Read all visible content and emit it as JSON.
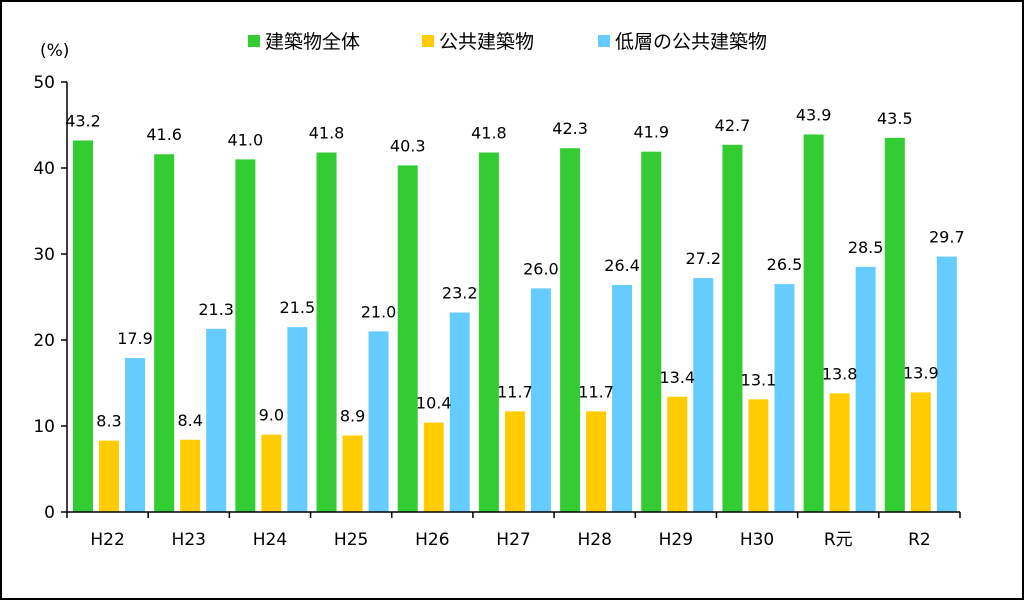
{
  "chart_data": {
    "type": "bar",
    "unit_label": "(%)",
    "categories": [
      "H22",
      "H23",
      "H24",
      "H25",
      "H26",
      "H27",
      "H28",
      "H29",
      "H30",
      "R元",
      "R2"
    ],
    "series": [
      {
        "name": "建築物全体",
        "color": "#33cc33",
        "values": [
          43.2,
          41.6,
          41.0,
          41.8,
          40.3,
          41.8,
          42.3,
          41.9,
          42.7,
          43.9,
          43.5
        ]
      },
      {
        "name": "公共建築物",
        "color": "#ffcc00",
        "values": [
          8.3,
          8.4,
          9.0,
          8.9,
          10.4,
          11.7,
          11.7,
          13.4,
          13.1,
          13.8,
          13.9
        ]
      },
      {
        "name": "低層の公共建築物",
        "color": "#66ccff",
        "values": [
          17.9,
          21.3,
          21.5,
          21.0,
          23.2,
          26.0,
          26.4,
          27.2,
          26.5,
          28.5,
          29.7
        ]
      }
    ],
    "ylim": [
      0,
      50
    ],
    "yticks": [
      "0",
      "10",
      "20",
      "30",
      "40",
      "50"
    ],
    "grid": false,
    "legend_position": "top"
  }
}
